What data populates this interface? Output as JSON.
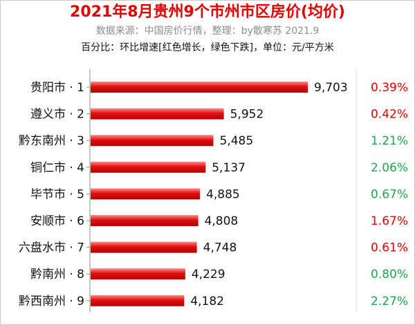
{
  "header": {
    "title": "2021年8月贵州9个市州市区房价(均价)",
    "subtitle": "数据来源：中国房价行情，整理：by散寒苏 2021.9",
    "note": "百分比：环比增速[红色增长，绿色下跌]，单位：元/平方米"
  },
  "colors": {
    "bar": "#e01010",
    "increase": "#e00000",
    "decrease": "#1ea54b",
    "axis": "#d9d9d9",
    "title": "#e00000"
  },
  "chart_data": {
    "type": "bar",
    "orientation": "horizontal",
    "title": "2021年8月贵州9个市州市区房价(均价)",
    "unit": "元/平方米",
    "categories": [
      "贵阳市 · 1",
      "遵义市 · 2",
      "黔东南州 · 3",
      "铜仁市 · 4",
      "毕节市 · 5",
      "安顺市 · 6",
      "六盘水市 · 7",
      "黔南州 · 8",
      "黔西南州 · 9"
    ],
    "values": [
      9703,
      5952,
      5485,
      5137,
      4885,
      4808,
      4748,
      4229,
      4182
    ],
    "value_labels": [
      "9,703",
      "5,952",
      "5,485",
      "5,137",
      "4,885",
      "4,808",
      "4,748",
      "4,229",
      "4,182"
    ],
    "mom_change": [
      "0.39%",
      "0.42%",
      "1.21%",
      "2.06%",
      "0.67%",
      "1.67%",
      "0.61%",
      "0.80%",
      "2.27%"
    ],
    "mom_color": [
      "increase",
      "increase",
      "decrease",
      "decrease",
      "decrease",
      "increase",
      "increase",
      "decrease",
      "decrease"
    ],
    "xlim": [
      0,
      9703
    ]
  }
}
